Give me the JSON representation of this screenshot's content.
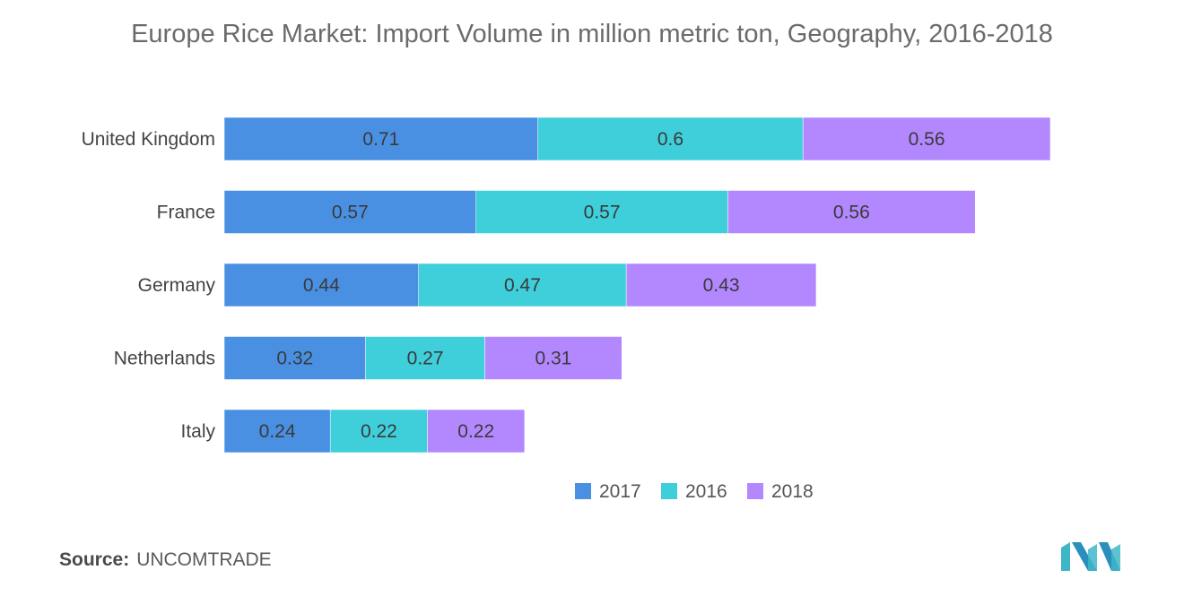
{
  "title": "Europe Rice Market: Import Volume in million metric ton, Geography, 2016-2018",
  "source_label": "Source:",
  "source_value": "UNCOMTRADE",
  "colors": {
    "2017": "#4a90e2",
    "2016": "#3fcfdb",
    "2018": "#b388ff"
  },
  "logo_icon": "mordor-intelligence-logo-icon",
  "chart_data": {
    "type": "bar",
    "orientation": "horizontal",
    "stacked": true,
    "categories": [
      "United Kingdom",
      "France",
      "Germany",
      "Netherlands",
      "Italy"
    ],
    "series": [
      {
        "name": "2017",
        "values": [
          0.71,
          0.57,
          0.44,
          0.32,
          0.24
        ]
      },
      {
        "name": "2016",
        "values": [
          0.6,
          0.57,
          0.47,
          0.27,
          0.22
        ]
      },
      {
        "name": "2018",
        "values": [
          0.56,
          0.56,
          0.43,
          0.31,
          0.22
        ]
      }
    ],
    "legend_position": "bottom-center",
    "grid": false
  }
}
